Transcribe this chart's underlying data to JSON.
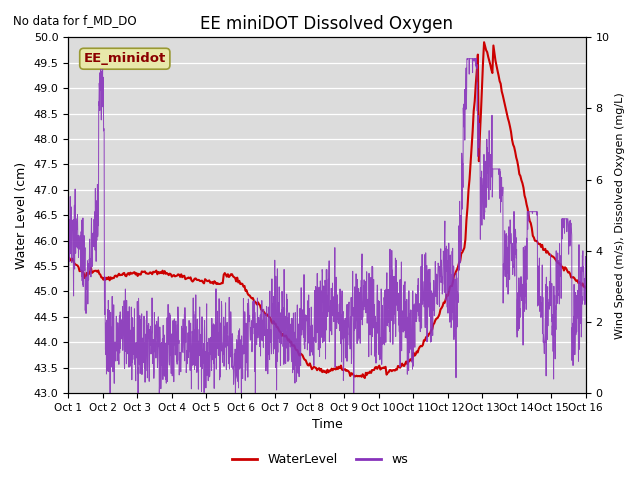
{
  "title": "EE miniDOT Dissolved Oxygen",
  "subtitle": "No data for f_MD_DO",
  "xlabel": "Time",
  "ylabel_left": "Water Level (cm)",
  "ylabel_right": "Wind Speed (m/s), Dissolved Oxygen (mg/L)",
  "ylim_left": [
    43.0,
    50.0
  ],
  "ylim_right": [
    0.0,
    10.0
  ],
  "xlim": [
    0,
    15
  ],
  "xtick_labels": [
    "Oct 1",
    "Oct 2",
    "Oct 3",
    "Oct 4",
    "Oct 5",
    "Oct 6",
    "Oct 7",
    "Oct 8",
    "Oct 9",
    "Oct 10",
    "Oct 11",
    "Oct 12",
    "Oct 13",
    "Oct 14",
    "Oct 15",
    "Oct 16"
  ],
  "yticks_left": [
    43.0,
    43.5,
    44.0,
    44.5,
    45.0,
    45.5,
    46.0,
    46.5,
    47.0,
    47.5,
    48.0,
    48.5,
    49.0,
    49.5,
    50.0
  ],
  "yticks_right": [
    0.0,
    2.0,
    4.0,
    6.0,
    8.0,
    10.0
  ],
  "plot_bg_color": "#dcdcdc",
  "water_level_color": "#cc0000",
  "ws_color": "#8833bb",
  "annotation_text": "EE_minidot",
  "annotation_text_color": "#8b0000",
  "annotation_box_facecolor": "#e8e8aa",
  "annotation_box_edgecolor": "#999933"
}
